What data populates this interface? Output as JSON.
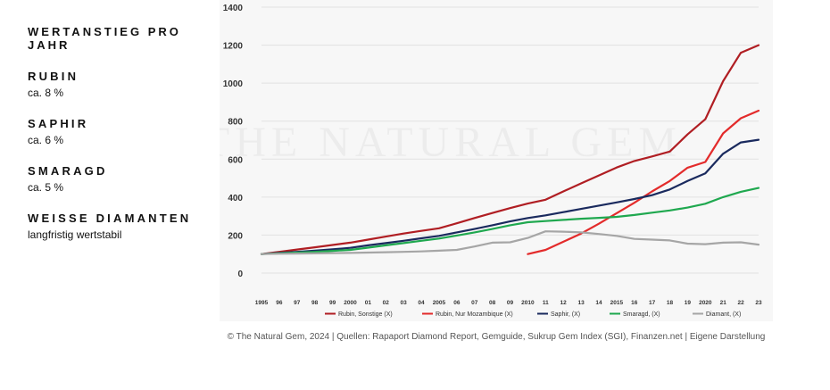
{
  "sidebar": {
    "heading": "WERTANSTIEG PRO JAHR",
    "items": [
      {
        "name": "RUBIN",
        "value": "ca. 8 %"
      },
      {
        "name": "SAPHIR",
        "value": "ca. 6 %"
      },
      {
        "name": "SMARAGD",
        "value": "ca. 5 %"
      },
      {
        "name": "WEISSE DIAMANTEN",
        "value": "langfristig wertstabil"
      }
    ]
  },
  "watermark": "THE NATURAL GEM",
  "source": "© The Natural Gem, 2024 | Quellen: Rapaport Diamond Report, Gemguide, Sukrup Gem Index (SGI), Finanzen.net | Eigene Darstellung",
  "chart_data": {
    "type": "line",
    "x": [
      1995,
      1996,
      1997,
      1998,
      1999,
      2000,
      2001,
      2002,
      2003,
      2004,
      2005,
      2006,
      2007,
      2008,
      2009,
      2010,
      2011,
      2012,
      2013,
      2014,
      2015,
      2016,
      2017,
      2018,
      2019,
      2020,
      2021,
      2022,
      2023
    ],
    "x_tick_labels": [
      "1995",
      "96",
      "97",
      "98",
      "99",
      "2000",
      "01",
      "02",
      "03",
      "04",
      "2005",
      "06",
      "07",
      "08",
      "09",
      "2010",
      "11",
      "12",
      "13",
      "14",
      "2015",
      "16",
      "17",
      "18",
      "19",
      "2020",
      "21",
      "22",
      "23"
    ],
    "ylim": [
      0,
      1400
    ],
    "y_ticks": [
      0,
      200,
      400,
      600,
      800,
      1000,
      1200,
      1400
    ],
    "grid": "horizontal",
    "legend_position": "bottom",
    "series": [
      {
        "name": "Rubin, Sonstige (X)",
        "color": "#b01e23",
        "values": [
          100,
          112,
          124,
          136,
          148,
          160,
          176,
          192,
          208,
          222,
          236,
          262,
          290,
          316,
          342,
          366,
          386,
          430,
          472,
          514,
          556,
          590,
          614,
          640,
          730,
          810,
          1010,
          1160,
          1200
        ]
      },
      {
        "name": "Rubin, Nur Mozambique (X)",
        "color": "#e32b2b",
        "values": [
          null,
          null,
          null,
          null,
          null,
          null,
          null,
          null,
          null,
          null,
          null,
          null,
          null,
          null,
          null,
          100,
          122,
          165,
          208,
          260,
          315,
          370,
          430,
          485,
          555,
          585,
          735,
          815,
          855
        ]
      },
      {
        "name": "Saphir, (X)",
        "color": "#1a2a5e",
        "values": [
          100,
          106,
          112,
          118,
          125,
          133,
          146,
          158,
          170,
          183,
          196,
          214,
          232,
          252,
          272,
          290,
          304,
          321,
          338,
          355,
          372,
          390,
          410,
          440,
          485,
          525,
          628,
          688,
          702
        ]
      },
      {
        "name": "Smaragd, (X)",
        "color": "#1fa84f",
        "values": [
          100,
          104,
          108,
          112,
          117,
          122,
          134,
          146,
          158,
          170,
          182,
          198,
          214,
          232,
          252,
          268,
          274,
          280,
          286,
          291,
          296,
          306,
          318,
          330,
          345,
          365,
          400,
          428,
          448
        ]
      },
      {
        "name": "Diamant, (X)",
        "color": "#a6a6a6",
        "values": [
          100,
          102,
          103,
          104,
          105,
          106,
          108,
          110,
          112,
          114,
          118,
          122,
          140,
          160,
          162,
          185,
          220,
          218,
          214,
          206,
          196,
          180,
          176,
          172,
          155,
          152,
          160,
          162,
          150
        ]
      }
    ]
  }
}
